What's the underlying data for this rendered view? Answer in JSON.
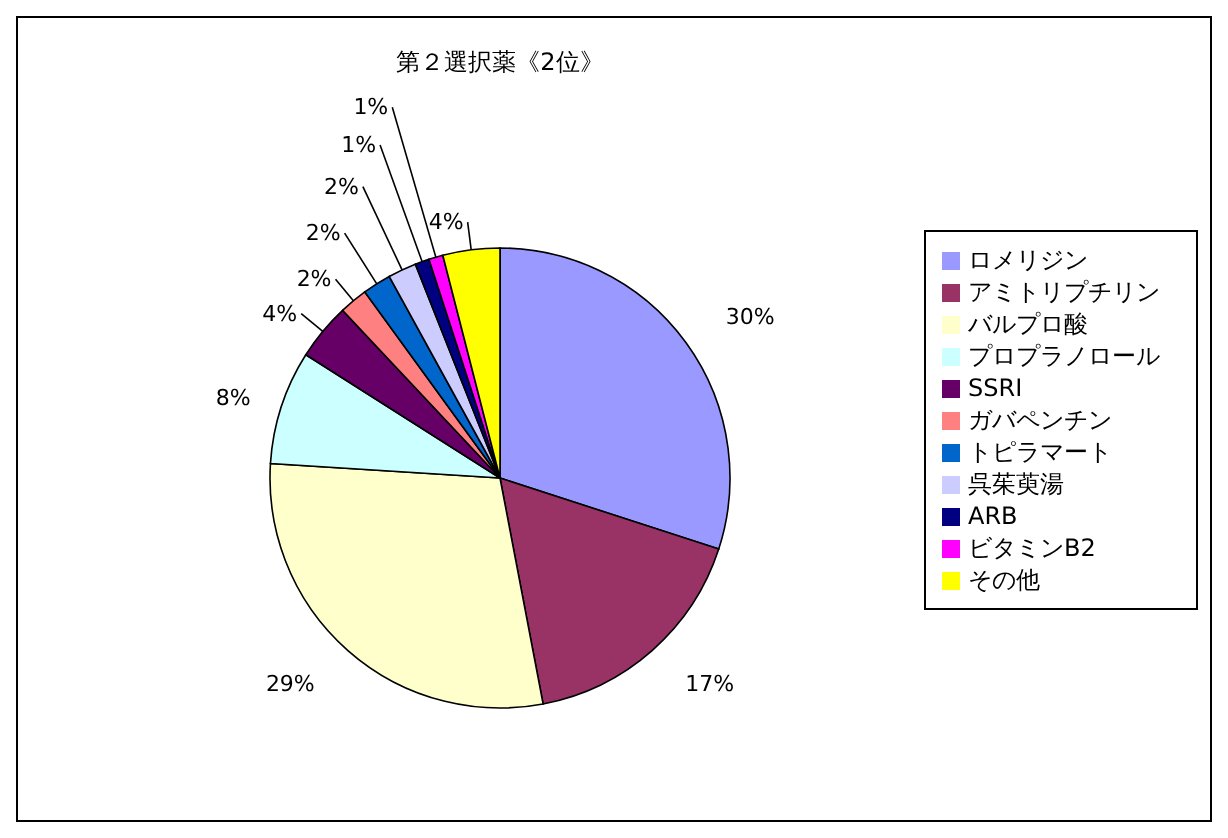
{
  "chart_data": {
    "type": "pie",
    "title": "第２選択薬《2位》",
    "categories": [
      "ロメリジン",
      "アミトリプチリン",
      "バルプロ酸",
      "プロプラノロール",
      "SSRI",
      "ガバペンチン",
      "トピラマート",
      "呉茱萸湯",
      "ARB",
      "ビタミンB2",
      "その他"
    ],
    "values": [
      30,
      17,
      29,
      8,
      4,
      2,
      2,
      2,
      1,
      1,
      4
    ],
    "colors": [
      "#9999ff",
      "#993366",
      "#ffffcc",
      "#ccffff",
      "#660066",
      "#ff8080",
      "#0066cc",
      "#ccccff",
      "#000080",
      "#ff00ff",
      "#ffff00"
    ],
    "value_labels": [
      "30%",
      "17%",
      "29%",
      "8%",
      "4%",
      "2%",
      "2%",
      "2%",
      "1%",
      "1%",
      "4%"
    ],
    "legend": "right"
  }
}
